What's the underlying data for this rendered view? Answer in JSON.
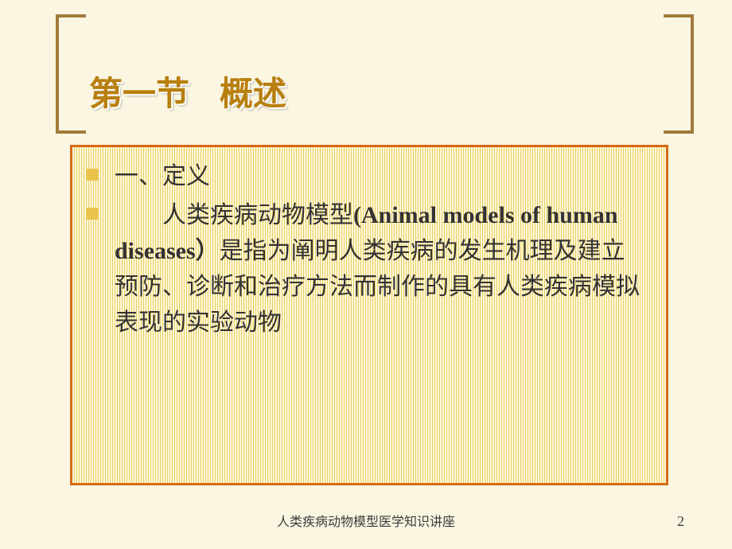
{
  "title": {
    "main": "第一节",
    "sub": "概述"
  },
  "content": {
    "bullet1": "一、定义",
    "bullet2_indent": "　　",
    "bullet2_lead": "人类疾病动物模型",
    "bullet2_eng": "(Animal models of human diseases）",
    "bullet2_rest": "是指为阐明人类疾病的发生机理及建立预防、诊断和治疗方法而制作的具有人类疾病模拟表现的实验动物"
  },
  "footer": "人类疾病动物模型医学知识讲座",
  "page_number": "2",
  "colors": {
    "background": "#fbf6e2",
    "bracket": "#a37a3b",
    "title": "#b87f0e",
    "box_border": "#d66a13",
    "stripe_light": "#fff8de",
    "stripe_dark": "#e7cf5b",
    "bullet": "#e9c34b",
    "text": "#343232"
  },
  "typography": {
    "title_fontsize": 42,
    "body_fontsize": 30,
    "footer_fontsize": 16,
    "body_lineheight": 1.5
  }
}
